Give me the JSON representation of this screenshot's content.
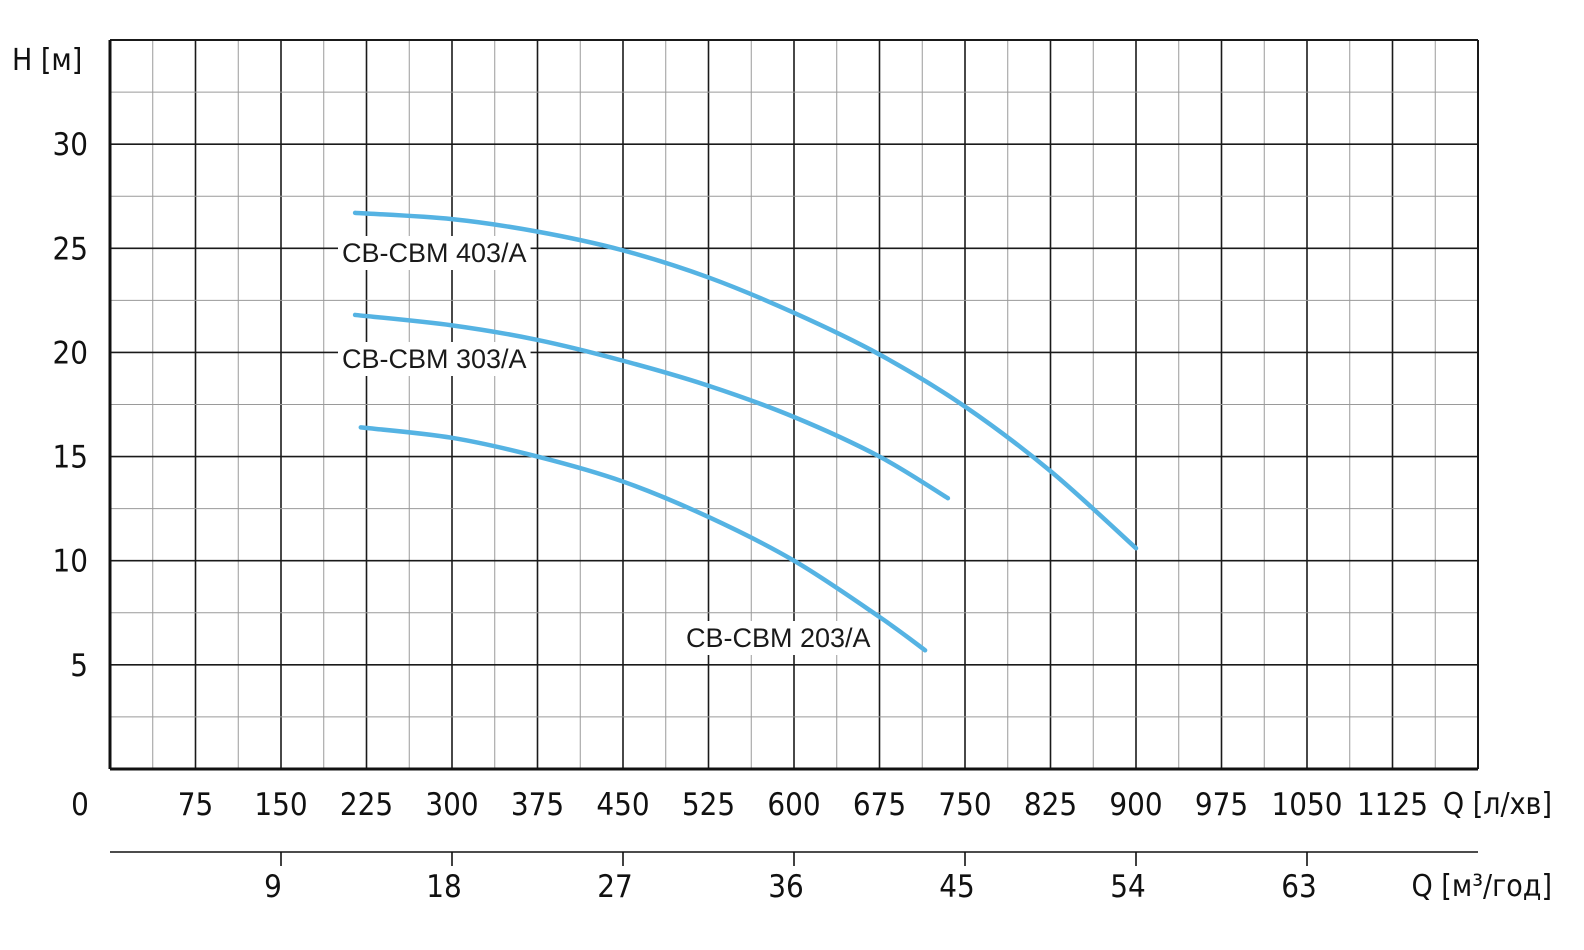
{
  "chart_data": {
    "type": "line",
    "ylabel": "H [м]",
    "xlabel": "Q [л/хв]",
    "x2label": "Q [м³/год]",
    "origin_label": "0",
    "ylim": [
      0,
      35
    ],
    "xlim": [
      0,
      1200
    ],
    "x2lim": [
      0,
      72
    ],
    "y_ticks": [
      5,
      10,
      15,
      20,
      25,
      30
    ],
    "x_ticks": [
      75,
      150,
      225,
      300,
      375,
      450,
      525,
      600,
      675,
      750,
      825,
      900,
      975,
      1050,
      1125
    ],
    "x2_ticks": [
      9,
      18,
      27,
      36,
      45,
      54,
      63
    ],
    "grid": true,
    "curve_color": "#55b3e3",
    "series": [
      {
        "name": "CB-CBM 403/A",
        "x": [
          215,
          300,
          375,
          450,
          525,
          600,
          675,
          750,
          825,
          900
        ],
        "y": [
          26.7,
          26.4,
          25.8,
          24.9,
          23.6,
          21.9,
          19.9,
          17.4,
          14.3,
          10.6
        ]
      },
      {
        "name": "CB-CBM 303/A",
        "x": [
          215,
          300,
          375,
          450,
          525,
          600,
          675,
          735
        ],
        "y": [
          21.8,
          21.3,
          20.6,
          19.6,
          18.4,
          16.9,
          15.0,
          13.0
        ]
      },
      {
        "name": "CB-CBM 203/A",
        "x": [
          220,
          300,
          375,
          450,
          525,
          600,
          675,
          715
        ],
        "y": [
          16.4,
          15.9,
          15.0,
          13.8,
          12.1,
          10.0,
          7.3,
          5.7
        ]
      }
    ]
  }
}
